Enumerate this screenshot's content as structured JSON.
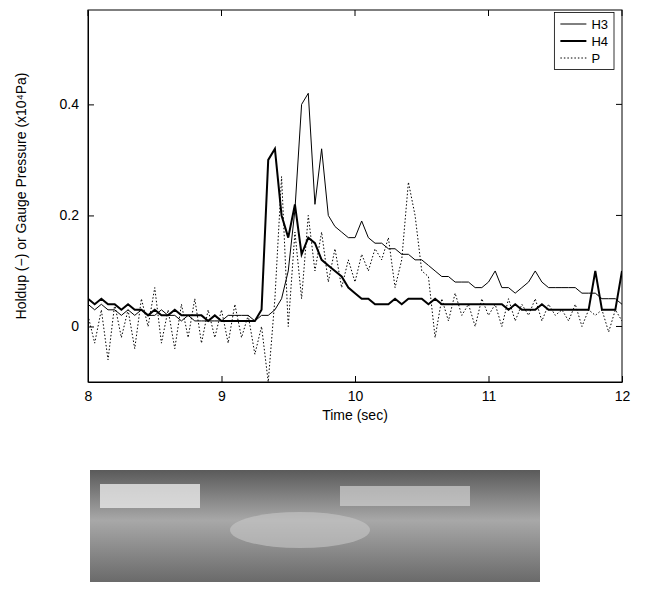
{
  "chart_data": {
    "type": "line",
    "x_label": "Time (sec)",
    "y_label": "Holdup (−) or Gauge Pressure (x10⁴Pa)",
    "xlim": [
      8,
      12
    ],
    "xticks": [
      8,
      9,
      10,
      11,
      12
    ],
    "ylim": [
      -0.1,
      0.57
    ],
    "yticks": [
      0,
      0.2,
      0.4
    ],
    "legend": "upper right",
    "x": [
      8,
      8.05,
      8.1,
      8.15,
      8.2,
      8.25,
      8.3,
      8.35,
      8.4,
      8.45,
      8.5,
      8.55,
      8.6,
      8.65,
      8.7,
      8.75,
      8.8,
      8.85,
      8.9,
      8.95,
      9,
      9.05,
      9.1,
      9.15,
      9.2,
      9.25,
      9.3,
      9.35,
      9.4,
      9.45,
      9.5,
      9.55,
      9.6,
      9.65,
      9.7,
      9.75,
      9.8,
      9.85,
      9.9,
      9.95,
      10,
      10.05,
      10.1,
      10.15,
      10.2,
      10.25,
      10.3,
      10.35,
      10.4,
      10.45,
      10.5,
      10.55,
      10.6,
      10.65,
      10.7,
      10.75,
      10.8,
      10.85,
      10.9,
      10.95,
      11,
      11.05,
      11.1,
      11.15,
      11.2,
      11.25,
      11.3,
      11.35,
      11.4,
      11.45,
      11.5,
      11.55,
      11.6,
      11.65,
      11.7,
      11.75,
      11.8,
      11.85,
      11.9,
      11.95,
      12
    ],
    "series": [
      {
        "name": "H3",
        "color": "#000000",
        "line_style": "solid",
        "values": [
          0.04,
          0.03,
          0.04,
          0.03,
          0.03,
          0.02,
          0.03,
          0.02,
          0.03,
          0.02,
          0.02,
          0.03,
          0.02,
          0.02,
          0.01,
          0.02,
          0.01,
          0.01,
          0.01,
          0.01,
          0.01,
          0.02,
          0.02,
          0.02,
          0.02,
          0.01,
          0.02,
          0.02,
          0.03,
          0.05,
          0.1,
          0.21,
          0.4,
          0.42,
          0.22,
          0.32,
          0.2,
          0.18,
          0.17,
          0.16,
          0.16,
          0.19,
          0.16,
          0.15,
          0.15,
          0.14,
          0.14,
          0.13,
          0.13,
          0.12,
          0.12,
          0.11,
          0.1,
          0.09,
          0.09,
          0.08,
          0.08,
          0.08,
          0.07,
          0.07,
          0.08,
          0.1,
          0.07,
          0.07,
          0.06,
          0.07,
          0.08,
          0.1,
          0.08,
          0.07,
          0.07,
          0.07,
          0.07,
          0.07,
          0.06,
          0.06,
          0.06,
          0.05,
          0.05,
          0.05,
          0.04
        ]
      },
      {
        "name": "H4",
        "color": "#000000",
        "line_style": "thick",
        "values": [
          0.05,
          0.04,
          0.05,
          0.04,
          0.04,
          0.03,
          0.04,
          0.03,
          0.03,
          0.02,
          0.03,
          0.02,
          0.02,
          0.03,
          0.02,
          0.02,
          0.02,
          0.02,
          0.01,
          0.02,
          0.01,
          0.01,
          0.01,
          0.01,
          0.01,
          0.01,
          0.03,
          0.3,
          0.32,
          0.2,
          0.16,
          0.22,
          0.13,
          0.16,
          0.15,
          0.12,
          0.11,
          0.1,
          0.09,
          0.07,
          0.06,
          0.05,
          0.05,
          0.04,
          0.04,
          0.04,
          0.05,
          0.04,
          0.05,
          0.05,
          0.05,
          0.04,
          0.05,
          0.04,
          0.04,
          0.04,
          0.04,
          0.04,
          0.04,
          0.04,
          0.04,
          0.04,
          0.04,
          0.03,
          0.04,
          0.03,
          0.03,
          0.03,
          0.04,
          0.03,
          0.03,
          0.03,
          0.03,
          0.03,
          0.03,
          0.03,
          0.1,
          0.03,
          0.03,
          0.03,
          0.1
        ]
      },
      {
        "name": "P",
        "color": "#000000",
        "line_style": "dotted",
        "values": [
          0.02,
          -0.03,
          0.03,
          -0.06,
          0.04,
          -0.02,
          0.03,
          -0.04,
          0.05,
          0,
          0.07,
          -0.03,
          0.03,
          -0.04,
          0.04,
          -0.02,
          0.05,
          -0.03,
          0.03,
          -0.02,
          0.03,
          -0.03,
          0.04,
          -0.02,
          0.02,
          -0.05,
          0,
          -0.1,
          0.05,
          0.27,
          0,
          0.17,
          0.05,
          0.2,
          0.1,
          0.17,
          0.08,
          0.14,
          0.07,
          0.12,
          0.08,
          0.13,
          0.1,
          0.14,
          0.12,
          0.16,
          0.07,
          0.12,
          0.26,
          0.2,
          0.1,
          0.09,
          -0.02,
          0.05,
          0.01,
          0.06,
          0.02,
          0.04,
          0,
          0.05,
          0.02,
          0.04,
          0,
          0.05,
          0.01,
          0.04,
          0.02,
          0.05,
          0.01,
          0.04,
          0.02,
          0.03,
          0.01,
          0.04,
          0,
          0.03,
          0.02,
          0.03,
          -0.01,
          0.03,
          0.01
        ]
      }
    ]
  }
}
